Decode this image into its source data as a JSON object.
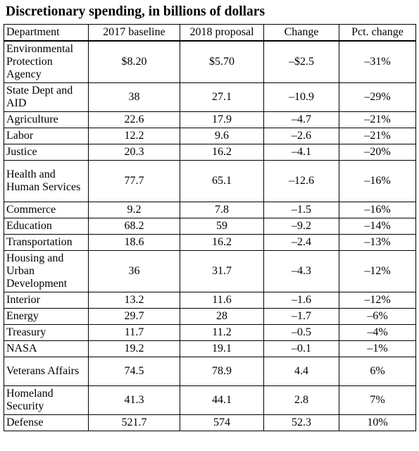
{
  "title": "Discretionary spending, in billions of dollars",
  "headers": [
    "Department",
    "2017 baseline",
    "2018 proposal",
    "Change",
    "Pct. change"
  ],
  "rows": [
    {
      "department": "Environmental Protection Agency",
      "baseline": "$8.20",
      "proposal": "$5.70",
      "change": "–$2.5",
      "pct": "–31%"
    },
    {
      "department": "State Dept and AID",
      "baseline": "38",
      "proposal": "27.1",
      "change": "–10.9",
      "pct": "–29%"
    },
    {
      "department": "Agriculture",
      "baseline": "22.6",
      "proposal": "17.9",
      "change": "–4.7",
      "pct": "–21%"
    },
    {
      "department": "Labor",
      "baseline": "12.2",
      "proposal": "9.6",
      "change": "–2.6",
      "pct": "–21%"
    },
    {
      "department": "Justice",
      "baseline": "20.3",
      "proposal": "16.2",
      "change": "–4.1",
      "pct": "–20%"
    },
    {
      "department": "Health and Human Services",
      "baseline": "77.7",
      "proposal": "65.1",
      "change": "–12.6",
      "pct": "–16%"
    },
    {
      "department": "Commerce",
      "baseline": "9.2",
      "proposal": "7.8",
      "change": "–1.5",
      "pct": "–16%"
    },
    {
      "department": "Education",
      "baseline": "68.2",
      "proposal": "59",
      "change": "–9.2",
      "pct": "–14%"
    },
    {
      "department": "Transportation",
      "baseline": "18.6",
      "proposal": "16.2",
      "change": "–2.4",
      "pct": "–13%"
    },
    {
      "department": "Housing and Urban Development",
      "baseline": "36",
      "proposal": "31.7",
      "change": "–4.3",
      "pct": "–12%"
    },
    {
      "department": "Interior",
      "baseline": "13.2",
      "proposal": "11.6",
      "change": "–1.6",
      "pct": "–12%"
    },
    {
      "department": "Energy",
      "baseline": "29.7",
      "proposal": "28",
      "change": "–1.7",
      "pct": "–6%"
    },
    {
      "department": "Treasury",
      "baseline": "11.7",
      "proposal": "11.2",
      "change": "–0.5",
      "pct": "–4%"
    },
    {
      "department": "NASA",
      "baseline": "19.2",
      "proposal": "19.1",
      "change": "–0.1",
      "pct": "–1%"
    },
    {
      "department": "Veterans Affairs",
      "baseline": "74.5",
      "proposal": "78.9",
      "change": "4.4",
      "pct": "6%"
    },
    {
      "department": "Homeland Security",
      "baseline": "41.3",
      "proposal": "44.1",
      "change": "2.8",
      "pct": "7%"
    },
    {
      "department": "Defense",
      "baseline": "521.7",
      "proposal": "574",
      "change": "52.3",
      "pct": "10%"
    }
  ]
}
